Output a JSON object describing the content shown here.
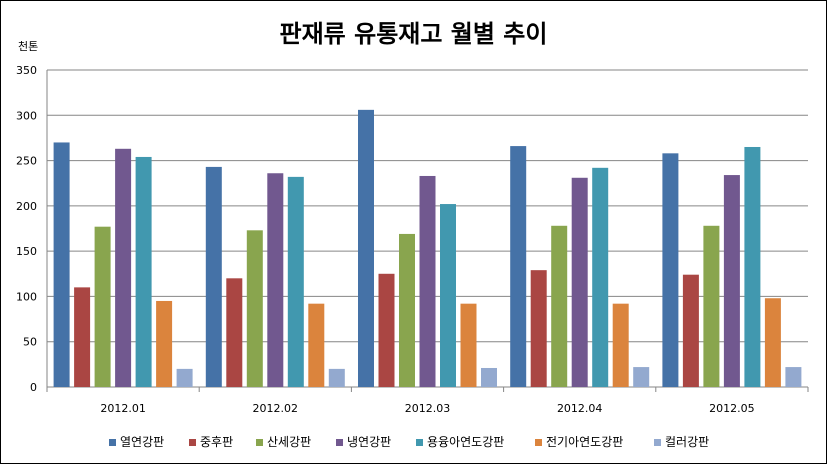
{
  "chart_data": {
    "type": "bar",
    "title": "판재류 유통재고 월별 추이",
    "ylabel": "천톤",
    "xlabel": "",
    "ylim": [
      0,
      350
    ],
    "yticks": [
      0,
      50,
      100,
      150,
      200,
      250,
      300,
      350
    ],
    "grid": true,
    "legend_position": "bottom",
    "categories": [
      "2012.01",
      "2012.02",
      "2012.03",
      "2012.04",
      "2012.05"
    ],
    "series": [
      {
        "name": "열연강판",
        "color": "#4572A7",
        "values": [
          270,
          243,
          306,
          266,
          258
        ]
      },
      {
        "name": "중후판",
        "color": "#AA4643",
        "values": [
          110,
          120,
          125,
          129,
          124
        ]
      },
      {
        "name": "산세강판",
        "color": "#89A54E",
        "values": [
          177,
          173,
          169,
          178,
          178
        ]
      },
      {
        "name": "냉연강판",
        "color": "#71588F",
        "values": [
          263,
          236,
          233,
          231,
          234
        ]
      },
      {
        "name": "용융아연도강판",
        "color": "#4198AF",
        "values": [
          254,
          232,
          202,
          242,
          265
        ]
      },
      {
        "name": "전기아연도강판",
        "color": "#DB843D",
        "values": [
          95,
          92,
          92,
          92,
          98
        ]
      },
      {
        "name": "컬러강판",
        "color": "#93A9CF",
        "values": [
          20,
          20,
          21,
          22,
          22
        ]
      }
    ]
  }
}
